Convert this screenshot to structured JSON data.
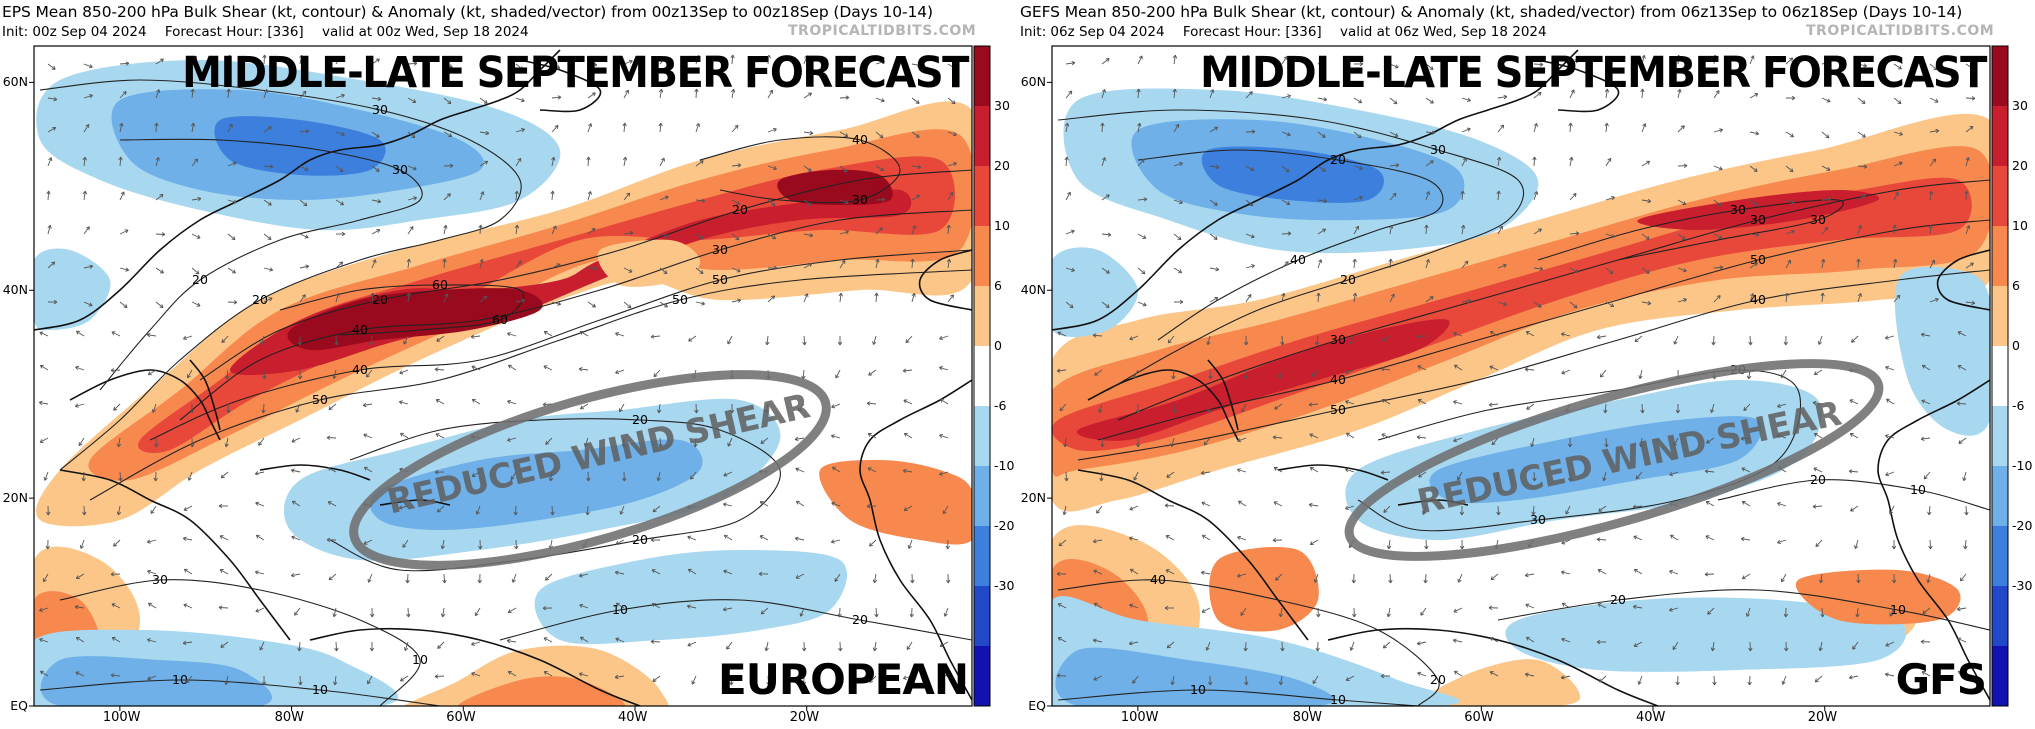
{
  "panels": [
    {
      "model_key": "eps",
      "header_line1": "EPS Mean 850-200 hPa Bulk Shear (kt, contour) & Anomaly (kt, shaded/vector) from 00z13Sep to 00z18Sep (Days 10-14)",
      "header_init": "Init: 00z Sep 04 2024",
      "header_fhour": "Forecast Hour: [336]",
      "header_valid": "valid at 00z Wed, Sep 18 2024",
      "credit": "TROPICALTIDBITS.COM",
      "overlay_title": "MIDDLE-LATE SEPTEMBER FORECAST",
      "model_label": "EUROPEAN",
      "shear_label": "REDUCED WIND SHEAR",
      "contour_labels": [
        "30",
        "20",
        "30",
        "20",
        "20",
        "20",
        "40",
        "30",
        "40",
        "50",
        "50",
        "50",
        "60",
        "60",
        "40",
        "30",
        "20",
        "20",
        "30",
        "10",
        "10",
        "20",
        "10",
        "10",
        "10",
        "10",
        "10",
        "10",
        "10",
        "20"
      ]
    },
    {
      "model_key": "gefs",
      "header_line1": "GEFS Mean 850-200 hPa Bulk Shear (kt, contour) & Anomaly (kt, shaded/vector) from 06z13Sep to 06z18Sep (Days 10-14)",
      "header_init": "Init: 06z Sep 04 2024",
      "header_fhour": "Forecast Hour: [336]",
      "header_valid": "valid at 06z Wed, Sep 18 2024",
      "credit": "TROPICALTIDBITS.COM",
      "overlay_title": "MIDDLE-LATE SEPTEMBER FORECAST",
      "model_label": "GFS",
      "shear_label": "REDUCED WIND SHEAR",
      "contour_labels": [
        "30",
        "20",
        "20",
        "40",
        "30",
        "30",
        "40",
        "50",
        "50",
        "40",
        "30",
        "30",
        "20",
        "30",
        "40",
        "20",
        "20",
        "10",
        "10",
        "10",
        "20",
        "10",
        "20",
        "10",
        "10",
        "20",
        "20",
        "10",
        "20"
      ]
    }
  ],
  "lat_labels": [
    "60N",
    "40N",
    "20N",
    "EQ"
  ],
  "lon_labels": [
    "100W",
    "80W",
    "60W",
    "40W",
    "20W"
  ],
  "colorbar_ticks": [
    "30",
    "20",
    "10",
    "6",
    "0",
    "-6",
    "-10",
    "-20",
    "-30"
  ],
  "colorbar_colors": [
    "#9a0a1e",
    "#c81e2e",
    "#e8483a",
    "#f7894f",
    "#fbc688",
    "#ffffff",
    "#a8d8f0",
    "#6fb0e8",
    "#3d7fdc",
    "#2048c8",
    "#1212b0"
  ]
}
